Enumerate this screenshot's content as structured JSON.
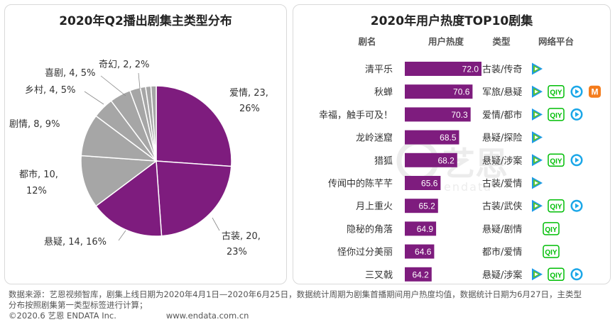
{
  "chart_data": [
    {
      "type": "pie",
      "title": "2020年Q2播出剧集主类型分布",
      "slices": [
        {
          "label": "爱情",
          "count": 23,
          "percent": 26,
          "label_text": "爱情, 23,",
          "label_text2": "26%",
          "color": "#7e1c7e"
        },
        {
          "label": "古装",
          "count": 20,
          "percent": 23,
          "label_text": "古装, 20,",
          "label_text2": "23%",
          "color": "#7e1c7e"
        },
        {
          "label": "悬疑",
          "count": 14,
          "percent": 16,
          "label_text": "悬疑, 14, 16%",
          "color": "#7e1c7e"
        },
        {
          "label": "都市",
          "count": 10,
          "percent": 12,
          "label_text": "都市, 10,",
          "label_text2": "12%",
          "color": "#a6a6a6"
        },
        {
          "label": "剧情",
          "count": 8,
          "percent": 9,
          "label_text": "剧情, 8, 9%",
          "color": "#a6a6a6"
        },
        {
          "label": "乡村",
          "count": 4,
          "percent": 5,
          "label_text": "乡村, 4, 5%",
          "color": "#a6a6a6"
        },
        {
          "label": "喜剧",
          "count": 4,
          "percent": 5,
          "label_text": "喜剧, 4, 5%",
          "color": "#a6a6a6"
        },
        {
          "label": "奇幻",
          "count": 2,
          "percent": 2,
          "label_text": "奇幻, 2, 2%",
          "color": "#a6a6a6"
        },
        {
          "label": "",
          "count": 1,
          "color": "#a6a6a6"
        },
        {
          "label": "",
          "count": 1,
          "color": "#a6a6a6"
        },
        {
          "label": "",
          "count": 1,
          "color": "#a6a6a6"
        }
      ]
    },
    {
      "type": "bar",
      "title": "2020年用户热度TOP10剧集",
      "columns": [
        "剧名",
        "用户热度",
        "类型",
        "网络平台"
      ],
      "xlim": [
        0,
        80
      ],
      "bar_color": "#7e1c7e",
      "rows": [
        {
          "name": "清平乐",
          "value": 72.0,
          "label": "72.0",
          "genre": "古装/传奇",
          "platforms": [
            "tencent"
          ]
        },
        {
          "name": "秋蝉",
          "value": 70.6,
          "label": "70.6",
          "genre": "军旅/悬疑",
          "platforms": [
            "tencent",
            "iqiyi",
            "youku",
            "mango"
          ]
        },
        {
          "name": "幸福，触手可及！",
          "value": 70.3,
          "label": "70.3",
          "genre": "爱情/都市",
          "platforms": [
            "tencent",
            "iqiyi",
            "youku"
          ]
        },
        {
          "name": "龙岭迷窟",
          "value": 68.5,
          "label": "68.5",
          "genre": "悬疑/探险",
          "platforms": [
            "tencent"
          ]
        },
        {
          "name": "猎狐",
          "value": 68.2,
          "label": "68.2",
          "genre": "悬疑/涉案",
          "platforms": [
            "tencent",
            "iqiyi",
            "youku"
          ]
        },
        {
          "name": "传闻中的陈芊芊",
          "value": 65.6,
          "label": "65.6",
          "genre": "古装/爱情",
          "platforms": [
            "tencent"
          ]
        },
        {
          "name": "月上重火",
          "value": 65.2,
          "label": "65.2",
          "genre": "古装/武侠",
          "platforms": [
            "tencent",
            "iqiyi",
            "youku"
          ]
        },
        {
          "name": "隐秘的角落",
          "value": 64.9,
          "label": "64.9",
          "genre": "悬疑/剧情",
          "platforms": [
            "iqiyi"
          ]
        },
        {
          "name": "怪你过分美丽",
          "value": 64.6,
          "label": "64.6",
          "genre": "都市/爱情",
          "platforms": [
            "iqiyi"
          ]
        },
        {
          "name": "三叉戟",
          "value": 64.2,
          "label": "64.2",
          "genre": "悬疑/涉案",
          "platforms": [
            "tencent",
            "iqiyi",
            "youku"
          ]
        }
      ]
    }
  ],
  "watermark": {
    "brand": "艺恩",
    "sub": "endata"
  },
  "icons": {
    "tencent": "tencent-video-icon",
    "iqiyi": "iqiyi-icon",
    "youku": "youku-icon",
    "mango": "mango-tv-icon"
  },
  "colors": {
    "purple": "#7e1c7e",
    "gray": "#a6a6a6",
    "tencent_blue": "#1e9be8",
    "tencent_green": "#59c22e",
    "iqiyi_green": "#00be06",
    "youku_blue": "#1ba7e8",
    "mango_orange": "#f47c1c"
  },
  "footer": {
    "line1": "数据来源：艺恩视频智库，剧集上线日期为2020年4月1日—2020年6月25日，数据统计周期为剧集首播期间用户热度均值，数据统计日期为6月27日，主类型",
    "line2": "分布按照剧集第一类型标签进行计算；",
    "copyright": "©2020.6 艺恩 ENDATA Inc.",
    "website": "www.endata.com.cn"
  }
}
